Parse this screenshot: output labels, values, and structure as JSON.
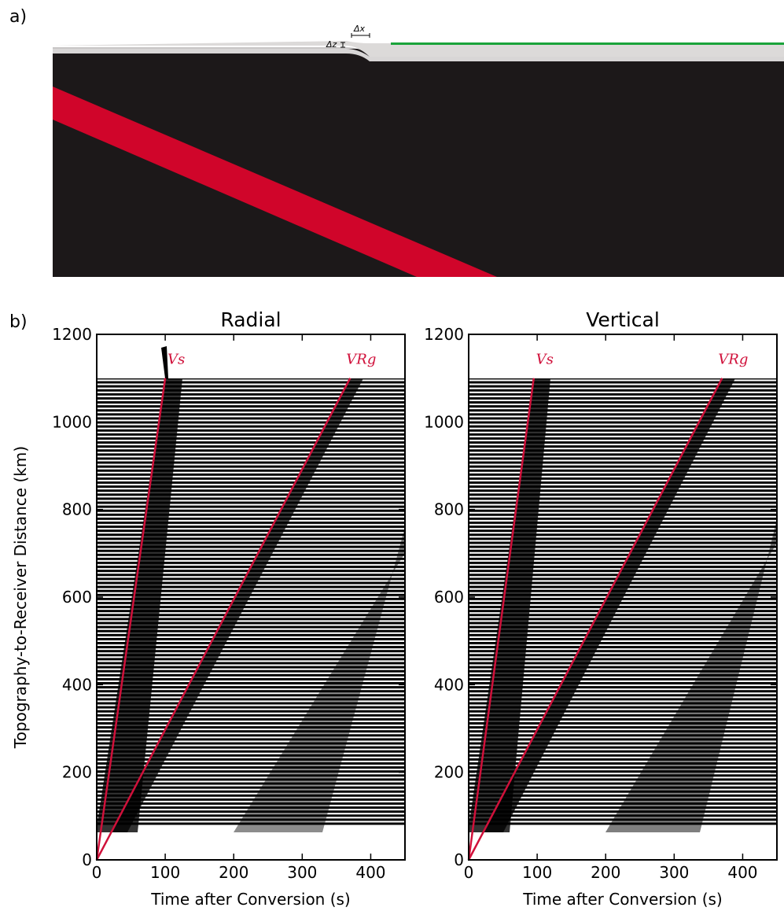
{
  "figure": {
    "panel_a_label": "a)",
    "panel_b_label": "b)",
    "annotations": [
      "Δz",
      "Δx"
    ]
  },
  "chart_data": [
    {
      "type": "line",
      "title": "Radial",
      "xlabel": "Time after Conversion (s)",
      "ylabel": "Topography-to-Receiver Distance (km)",
      "xlim": [
        0,
        450
      ],
      "ylim": [
        0,
        1200
      ],
      "xticks": [
        0,
        100,
        200,
        300,
        400
      ],
      "yticks": [
        0,
        200,
        400,
        600,
        800,
        1000,
        1200
      ],
      "series": [
        {
          "name": "Vs",
          "color": "#d0103a",
          "x": [
            0,
            100
          ],
          "values": [
            0,
            1100
          ]
        },
        {
          "name": "VRg",
          "color": "#d0103a",
          "x": [
            0,
            370
          ],
          "values": [
            0,
            1100
          ]
        }
      ]
    },
    {
      "type": "line",
      "title": "Vertical",
      "xlabel": "Time after Conversion (s)",
      "xlim": [
        0,
        450
      ],
      "ylim": [
        0,
        1200
      ],
      "xticks": [
        0,
        100,
        200,
        300,
        400
      ],
      "yticks": [
        0,
        200,
        400,
        600,
        800,
        1000,
        1200
      ],
      "series": [
        {
          "name": "Vs",
          "color": "#d0103a",
          "x": [
            0,
            95
          ],
          "values": [
            0,
            1100
          ]
        },
        {
          "name": "VRg",
          "color": "#d0103a",
          "x": [
            0,
            370
          ],
          "values": [
            0,
            1100
          ]
        }
      ]
    }
  ]
}
